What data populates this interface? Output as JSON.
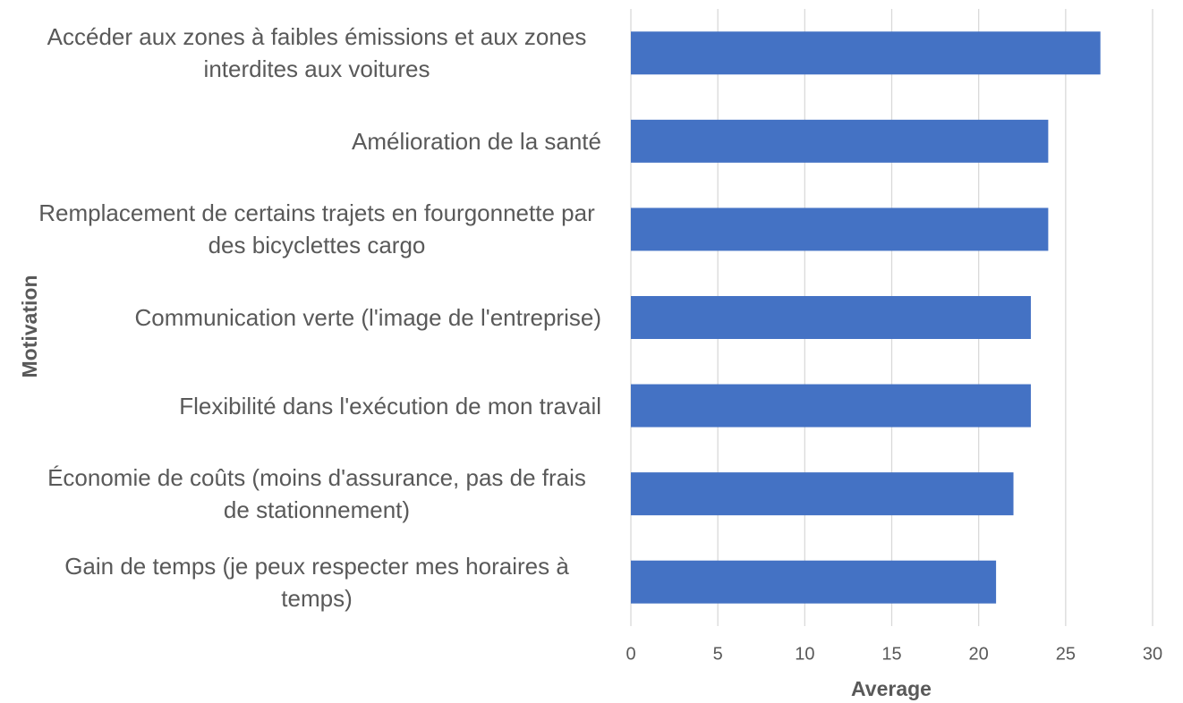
{
  "chart_data": {
    "type": "barh",
    "xlabel": "Average",
    "ylabel": "Motivation",
    "categories": [
      "Accéder aux zones à faibles émissions et aux zones interdites aux voitures",
      "Amélioration de la santé",
      "Remplacement de certains trajets en fourgonnette par des bicyclettes cargo",
      "Communication verte (l'image de l'entreprise)",
      "Flexibilité dans l'exécution de mon travail",
      "Économie de coûts (moins d'assurance, pas de frais de stationnement)",
      "Gain de temps (je peux respecter mes horaires à temps)"
    ],
    "values": [
      27,
      24,
      24,
      23,
      23,
      22,
      21
    ],
    "color": "#4472c4",
    "xlim": [
      0,
      30
    ],
    "xticks": [
      0,
      5,
      10,
      15,
      20,
      25,
      30
    ],
    "grid": true
  }
}
